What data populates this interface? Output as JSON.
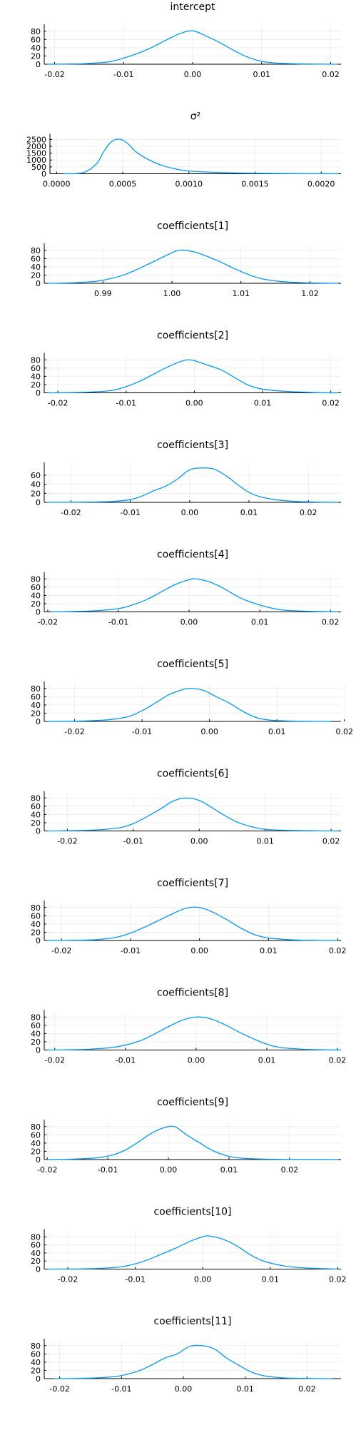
{
  "chart_data": [
    {
      "type": "line",
      "title": "intercept",
      "xlabel": "",
      "ylabel": "",
      "xlim": [
        -0.0215,
        0.0215
      ],
      "ylim": [
        0,
        90
      ],
      "xticks": [
        -0.02,
        -0.01,
        0.0,
        0.01,
        0.02
      ],
      "xtick_labels": [
        "-0.02",
        "-0.01",
        "0.00",
        "0.01",
        "0.02"
      ],
      "yticks": [
        0,
        20,
        40,
        60,
        80
      ],
      "ytick_labels": [
        "0",
        "20",
        "40",
        "60",
        "80"
      ],
      "grid": true,
      "legend": "none",
      "series": [
        {
          "color": "#009AFA",
          "x": [
            -0.021,
            -0.018,
            -0.015,
            -0.012,
            -0.01,
            -0.008,
            -0.006,
            -0.004,
            -0.002,
            0.0,
            0.002,
            0.004,
            0.006,
            0.008,
            0.01,
            0.012,
            0.015,
            0.018,
            0.021
          ],
          "y": [
            0,
            0.5,
            2,
            6,
            15,
            26,
            40,
            57,
            73,
            81,
            68,
            52,
            33,
            17,
            7,
            3,
            1,
            0.3,
            0
          ]
        }
      ]
    },
    {
      "type": "line",
      "title": "σ²",
      "xlabel": "",
      "ylabel": "",
      "xlim": [
        -5e-05,
        0.00215
      ],
      "ylim": [
        0,
        2700
      ],
      "xticks": [
        0.0,
        0.0005,
        0.001,
        0.0015,
        0.002
      ],
      "xtick_labels": [
        "0.0000",
        "0.0005",
        "0.0010",
        "0.0015",
        "0.0020"
      ],
      "yticks": [
        0,
        500,
        1000,
        1500,
        2000,
        2500
      ],
      "ytick_labels": [
        "0",
        "500",
        "1000",
        "1500",
        "2000",
        "2500"
      ],
      "grid": true,
      "legend": "none",
      "series": [
        {
          "color": "#009AFA",
          "x": [
            5e-05,
            0.0002,
            0.0003,
            0.00035,
            0.0004,
            0.00045,
            0.0005,
            0.00055,
            0.0006,
            0.0007,
            0.0008,
            0.0009,
            0.001,
            0.0012,
            0.0014,
            0.0016,
            0.0018,
            0.002,
            0.00213
          ],
          "y": [
            0,
            80,
            700,
            1500,
            2200,
            2500,
            2450,
            2100,
            1600,
            1000,
            600,
            350,
            200,
            100,
            50,
            25,
            10,
            5,
            0
          ]
        }
      ]
    },
    {
      "type": "line",
      "title": "coefficients[1]",
      "xlabel": "",
      "ylabel": "",
      "xlim": [
        0.9815,
        1.0245
      ],
      "ylim": [
        0,
        90
      ],
      "xticks": [
        0.99,
        1.0,
        1.01,
        1.02
      ],
      "xtick_labels": [
        "0.99",
        "1.00",
        "1.01",
        "1.02"
      ],
      "yticks": [
        0,
        20,
        40,
        60,
        80
      ],
      "ytick_labels": [
        "0",
        "20",
        "40",
        "60",
        "80"
      ],
      "grid": true,
      "legend": "none",
      "series": [
        {
          "color": "#009AFA",
          "x": [
            0.982,
            0.986,
            0.989,
            0.991,
            0.993,
            0.995,
            0.997,
            0.999,
            1.001,
            1.003,
            1.005,
            1.007,
            1.009,
            1.011,
            1.013,
            1.016,
            1.019,
            1.022,
            1.024
          ],
          "y": [
            0,
            1.5,
            5,
            11,
            20,
            34,
            50,
            66,
            80,
            77,
            66,
            52,
            36,
            22,
            11,
            4,
            1.5,
            0.5,
            0
          ]
        }
      ]
    },
    {
      "type": "line",
      "title": "coefficients[2]",
      "xlabel": "",
      "ylabel": "",
      "xlim": [
        -0.022,
        0.0215
      ],
      "ylim": [
        0,
        90
      ],
      "xticks": [
        -0.02,
        -0.01,
        0.0,
        0.01,
        0.02
      ],
      "xtick_labels": [
        "-0.02",
        "-0.01",
        "0.00",
        "0.01",
        "0.02"
      ],
      "yticks": [
        0,
        20,
        40,
        60,
        80
      ],
      "ytick_labels": [
        "0",
        "20",
        "40",
        "60",
        "80"
      ],
      "grid": true,
      "legend": "none",
      "series": [
        {
          "color": "#009AFA",
          "x": [
            -0.0215,
            -0.018,
            -0.015,
            -0.012,
            -0.01,
            -0.008,
            -0.006,
            -0.004,
            -0.002,
            -0.001,
            0.0,
            0.002,
            0.004,
            0.006,
            0.008,
            0.01,
            0.013,
            0.017,
            0.021
          ],
          "y": [
            0,
            0.5,
            2,
            6,
            15,
            28,
            45,
            62,
            76,
            80,
            78,
            67,
            55,
            36,
            18,
            9,
            4,
            1,
            0
          ]
        }
      ]
    },
    {
      "type": "line",
      "title": "coefficients[3]",
      "xlabel": "",
      "ylabel": "",
      "xlim": [
        -0.0245,
        0.0255
      ],
      "ylim": [
        0,
        82
      ],
      "xticks": [
        -0.02,
        -0.01,
        0.0,
        0.01,
        0.02
      ],
      "xtick_labels": [
        "-0.02",
        "-0.01",
        "0.00",
        "0.01",
        "0.02"
      ],
      "yticks": [
        0,
        20,
        40,
        60
      ],
      "ytick_labels": [
        "0",
        "20",
        "40",
        "60"
      ],
      "grid": true,
      "legend": "none",
      "series": [
        {
          "color": "#009AFA",
          "x": [
            -0.024,
            -0.018,
            -0.013,
            -0.01,
            -0.008,
            -0.006,
            -0.004,
            -0.002,
            0.0,
            0.002,
            0.004,
            0.006,
            0.008,
            0.01,
            0.012,
            0.015,
            0.018,
            0.022,
            0.025
          ],
          "y": [
            0,
            0.5,
            2,
            6,
            14,
            26,
            36,
            52,
            72,
            76,
            74,
            60,
            40,
            22,
            12,
            5,
            2,
            0.5,
            0
          ]
        }
      ]
    },
    {
      "type": "line",
      "title": "coefficients[4]",
      "xlabel": "",
      "ylabel": "",
      "xlim": [
        -0.0205,
        0.0215
      ],
      "ylim": [
        0,
        90
      ],
      "xticks": [
        -0.02,
        -0.01,
        0.0,
        0.01,
        0.02
      ],
      "xtick_labels": [
        "-0.02",
        "-0.01",
        "0.00",
        "0.01",
        "0.02"
      ],
      "yticks": [
        0,
        20,
        40,
        60,
        80
      ],
      "ytick_labels": [
        "0",
        "20",
        "40",
        "60",
        "80"
      ],
      "grid": true,
      "legend": "none",
      "series": [
        {
          "color": "#009AFA",
          "x": [
            -0.0195,
            -0.016,
            -0.013,
            -0.01,
            -0.008,
            -0.006,
            -0.004,
            -0.002,
            0.0,
            0.001,
            0.003,
            0.005,
            0.007,
            0.009,
            0.011,
            0.013,
            0.016,
            0.019,
            0.021
          ],
          "y": [
            0,
            1,
            3,
            8,
            17,
            30,
            48,
            66,
            78,
            80,
            72,
            56,
            36,
            22,
            12,
            5,
            2,
            0.5,
            0
          ]
        }
      ]
    },
    {
      "type": "line",
      "title": "coefficients[5]",
      "xlabel": "",
      "ylabel": "",
      "xlim": [
        -0.0245,
        0.0195
      ],
      "ylim": [
        0,
        90
      ],
      "xticks": [
        -0.02,
        -0.01,
        0.0,
        0.01,
        0.02
      ],
      "xtick_labels": [
        "-0.02",
        "-0.01",
        "0.00",
        "0.01",
        "0.02"
      ],
      "yticks": [
        0,
        20,
        40,
        60,
        80
      ],
      "ytick_labels": [
        "0",
        "20",
        "40",
        "60",
        "80"
      ],
      "grid": true,
      "legend": "none",
      "series": [
        {
          "color": "#009AFA",
          "x": [
            -0.024,
            -0.019,
            -0.015,
            -0.012,
            -0.01,
            -0.008,
            -0.006,
            -0.004,
            -0.003,
            -0.001,
            0.001,
            0.003,
            0.005,
            0.007,
            0.009,
            0.012,
            0.015,
            0.018
          ],
          "y": [
            0,
            1,
            4,
            12,
            26,
            45,
            65,
            77,
            80,
            76,
            60,
            44,
            24,
            9,
            3,
            1,
            0.3,
            0
          ]
        }
      ]
    },
    {
      "type": "line",
      "title": "coefficients[6]",
      "xlabel": "",
      "ylabel": "",
      "xlim": [
        -0.0235,
        0.0215
      ],
      "ylim": [
        0,
        90
      ],
      "xticks": [
        -0.02,
        -0.01,
        0.0,
        0.01,
        0.02
      ],
      "xtick_labels": [
        "-0.02",
        "-0.01",
        "0.00",
        "0.01",
        "0.02"
      ],
      "yticks": [
        0,
        20,
        40,
        60,
        80
      ],
      "ytick_labels": [
        "0",
        "20",
        "40",
        "60",
        "80"
      ],
      "grid": true,
      "legend": "none",
      "series": [
        {
          "color": "#009AFA",
          "x": [
            -0.023,
            -0.018,
            -0.015,
            -0.012,
            -0.01,
            -0.008,
            -0.006,
            -0.004,
            -0.002,
            0.0,
            0.002,
            0.004,
            0.006,
            0.008,
            0.01,
            0.013,
            0.017,
            0.021
          ],
          "y": [
            0,
            1,
            3,
            8,
            18,
            34,
            52,
            72,
            80,
            74,
            56,
            36,
            20,
            10,
            4,
            1.5,
            0.5,
            0
          ]
        }
      ]
    },
    {
      "type": "line",
      "title": "coefficients[7]",
      "xlabel": "",
      "ylabel": "",
      "xlim": [
        -0.0225,
        0.0205
      ],
      "ylim": [
        0,
        90
      ],
      "xticks": [
        -0.02,
        -0.01,
        0.0,
        0.01,
        0.02
      ],
      "xtick_labels": [
        "-0.02",
        "-0.01",
        "0.00",
        "0.01",
        "0.02"
      ],
      "yticks": [
        0,
        20,
        40,
        60,
        80
      ],
      "ytick_labels": [
        "0",
        "20",
        "40",
        "60",
        "80"
      ],
      "grid": true,
      "legend": "none",
      "series": [
        {
          "color": "#009AFA",
          "x": [
            -0.022,
            -0.018,
            -0.015,
            -0.012,
            -0.01,
            -0.008,
            -0.006,
            -0.004,
            -0.002,
            0.0,
            0.002,
            0.004,
            0.006,
            0.008,
            0.01,
            0.013,
            0.016,
            0.02
          ],
          "y": [
            0,
            0.5,
            2,
            8,
            18,
            32,
            48,
            64,
            78,
            80,
            68,
            50,
            30,
            14,
            6,
            2,
            0.5,
            0
          ]
        }
      ]
    },
    {
      "type": "line",
      "title": "coefficients[8]",
      "xlabel": "",
      "ylabel": "",
      "xlim": [
        -0.0215,
        0.0205
      ],
      "ylim": [
        0,
        90
      ],
      "xticks": [
        -0.02,
        -0.01,
        0.0,
        0.01,
        0.02
      ],
      "xtick_labels": [
        "-0.02",
        "-0.01",
        "0.00",
        "0.01",
        "0.02"
      ],
      "yticks": [
        0,
        20,
        40,
        60,
        80
      ],
      "ytick_labels": [
        "0",
        "20",
        "40",
        "60",
        "80"
      ],
      "grid": true,
      "legend": "none",
      "series": [
        {
          "color": "#009AFA",
          "x": [
            -0.021,
            -0.018,
            -0.015,
            -0.012,
            -0.01,
            -0.008,
            -0.006,
            -0.004,
            -0.002,
            0.0,
            0.002,
            0.004,
            0.006,
            0.008,
            0.01,
            0.012,
            0.015,
            0.018,
            0.0205
          ],
          "y": [
            0,
            0.5,
            2,
            6,
            12,
            22,
            38,
            56,
            72,
            80,
            76,
            62,
            44,
            28,
            14,
            6,
            2,
            0.5,
            0
          ]
        }
      ]
    },
    {
      "type": "line",
      "title": "coefficients[9]",
      "xlabel": "",
      "ylabel": "",
      "xlim": [
        -0.0205,
        0.0285
      ],
      "ylim": [
        0,
        90
      ],
      "xticks": [
        -0.02,
        -0.01,
        0.0,
        0.01,
        0.02
      ],
      "xtick_labels": [
        "-0.02",
        "-0.01",
        "0.00",
        "0.01",
        "0.02"
      ],
      "yticks": [
        0,
        20,
        40,
        60,
        80
      ],
      "ytick_labels": [
        "0",
        "20",
        "40",
        "60",
        "80"
      ],
      "grid": true,
      "legend": "none",
      "series": [
        {
          "color": "#009AFA",
          "x": [
            -0.02,
            -0.016,
            -0.012,
            -0.009,
            -0.007,
            -0.005,
            -0.003,
            -0.001,
            0.001,
            0.003,
            0.005,
            0.007,
            0.009,
            0.011,
            0.014,
            0.018,
            0.022,
            0.028
          ],
          "y": [
            0,
            1,
            4,
            12,
            24,
            42,
            62,
            76,
            80,
            60,
            42,
            24,
            12,
            5,
            2,
            0.7,
            0.2,
            0
          ]
        }
      ]
    },
    {
      "type": "line",
      "title": "coefficients[10]",
      "xlabel": "",
      "ylabel": "",
      "xlim": [
        -0.0235,
        0.0205
      ],
      "ylim": [
        0,
        92
      ],
      "xticks": [
        -0.02,
        -0.01,
        0.0,
        0.01,
        0.02
      ],
      "xtick_labels": [
        "-0.02",
        "-0.01",
        "0.00",
        "0.01",
        "0.02"
      ],
      "yticks": [
        0,
        20,
        40,
        60,
        80
      ],
      "ytick_labels": [
        "0",
        "20",
        "40",
        "60",
        "80"
      ],
      "grid": true,
      "legend": "none",
      "series": [
        {
          "color": "#009AFA",
          "x": [
            -0.023,
            -0.018,
            -0.015,
            -0.012,
            -0.01,
            -0.008,
            -0.006,
            -0.004,
            -0.002,
            0.0,
            0.001,
            0.003,
            0.005,
            0.007,
            0.009,
            0.012,
            0.015,
            0.018,
            0.02
          ],
          "y": [
            0,
            0.5,
            2,
            6,
            13,
            24,
            38,
            52,
            68,
            80,
            82,
            74,
            58,
            36,
            20,
            8,
            3,
            1,
            0
          ]
        }
      ]
    },
    {
      "type": "line",
      "title": "coefficients[11]",
      "xlabel": "",
      "ylabel": "",
      "xlim": [
        -0.0225,
        0.0255
      ],
      "ylim": [
        0,
        90
      ],
      "xticks": [
        -0.02,
        -0.01,
        0.0,
        0.01,
        0.02
      ],
      "xtick_labels": [
        "-0.02",
        "-0.01",
        "0.00",
        "0.01",
        "0.02"
      ],
      "yticks": [
        0,
        20,
        40,
        60,
        80
      ],
      "ytick_labels": [
        "0",
        "20",
        "40",
        "60",
        "80"
      ],
      "grid": true,
      "legend": "none",
      "series": [
        {
          "color": "#009AFA",
          "x": [
            -0.021,
            -0.017,
            -0.014,
            -0.011,
            -0.009,
            -0.007,
            -0.005,
            -0.003,
            -0.001,
            0.001,
            0.003,
            0.005,
            0.007,
            0.009,
            0.011,
            0.013,
            0.016,
            0.02,
            0.024
          ],
          "y": [
            0,
            0.5,
            2,
            5,
            11,
            20,
            34,
            50,
            60,
            78,
            80,
            72,
            50,
            32,
            16,
            7,
            2,
            0.5,
            0
          ]
        }
      ]
    }
  ]
}
